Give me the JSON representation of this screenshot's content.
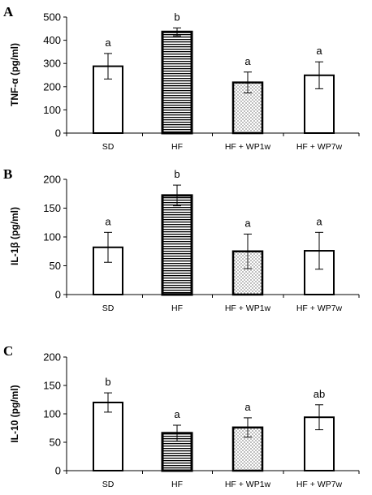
{
  "colors": {
    "bar_outline": "#000000",
    "bar_fill": "#ffffff",
    "hatch": "#000000"
  },
  "chart_data": [
    {
      "type": "bar",
      "panel": "A",
      "ylabel": "TNF-α (pg/ml)",
      "ylim": [
        0,
        500
      ],
      "yticks": [
        "0",
        "100",
        "200",
        "300",
        "400",
        "500"
      ],
      "categories": [
        "SD",
        "HF",
        "HF + WP1w",
        "HF + WP7w"
      ],
      "values": [
        288,
        436,
        218,
        249
      ],
      "errors": [
        55,
        17,
        45,
        58
      ],
      "significance": [
        "a",
        "b",
        "a",
        "a"
      ],
      "patterns": [
        "white",
        "horizontal-lines",
        "dots",
        "white"
      ]
    },
    {
      "type": "bar",
      "panel": "B",
      "ylabel": "IL-1β (pg/ml)",
      "ylim": [
        0,
        200
      ],
      "yticks": [
        "0",
        "50",
        "100",
        "150",
        "200"
      ],
      "categories": [
        "SD",
        "HF",
        "HF + WP1w",
        "HF + WP7w"
      ],
      "values": [
        82,
        172,
        75,
        76
      ],
      "errors": [
        26,
        18,
        30,
        32
      ],
      "significance": [
        "a",
        "b",
        "a",
        "a"
      ],
      "patterns": [
        "white",
        "horizontal-lines",
        "dots",
        "white"
      ]
    },
    {
      "type": "bar",
      "panel": "C",
      "ylabel": "IL-10 (pg/ml)",
      "ylim": [
        0,
        200
      ],
      "yticks": [
        "0",
        "50",
        "100",
        "150",
        "200"
      ],
      "categories": [
        "SD",
        "HF",
        "HF + WP1w",
        "HF + WP7w"
      ],
      "values": [
        120,
        66,
        76,
        94
      ],
      "errors": [
        17,
        14,
        17,
        22
      ],
      "significance": [
        "b",
        "a",
        "a",
        "ab"
      ],
      "patterns": [
        "white",
        "horizontal-lines",
        "dots",
        "white"
      ]
    }
  ]
}
